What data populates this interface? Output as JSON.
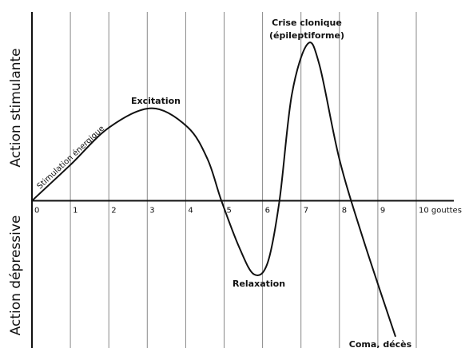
{
  "chart_data": {
    "type": "line",
    "y_labels": [
      "Action stimulante",
      "Action dépressive"
    ],
    "x": [
      0,
      1,
      2.02,
      3.12,
      4.05,
      4.57,
      4.93,
      5.4,
      5.78,
      6.13,
      6.44,
      6.76,
      7.17,
      7.48,
      8.0,
      8.63,
      9.46
    ],
    "values": [
      0,
      0.19,
      0.39,
      0.49,
      0.39,
      0.22,
      0,
      -0.25,
      -0.39,
      -0.33,
      0,
      0.56,
      0.83,
      0.72,
      0.22,
      -0.21,
      -0.72
    ],
    "color": "#111111",
    "xlim": [
      0,
      10
    ],
    "xticks": [
      0,
      1,
      2,
      3,
      4,
      5,
      6,
      7,
      8,
      9,
      {
        "value": 10,
        "label": "10 gouttes"
      }
    ],
    "ylim": [
      -0.78,
      1.0
    ],
    "grid": true,
    "annotations": [
      "Stimulation énergique",
      "Excitation",
      "Relaxation",
      "Crise clonique",
      "(épileptiforme)",
      "Coma, décès"
    ]
  }
}
